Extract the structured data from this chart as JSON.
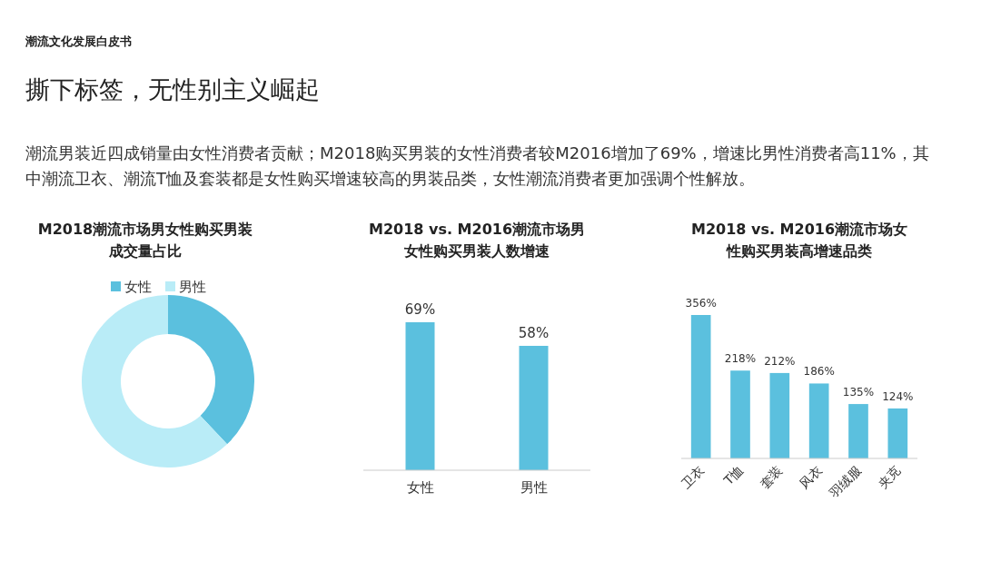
{
  "chart_data": [
    {
      "type": "donut",
      "title": "M2018潮流市场男女性购买男装成交量占比",
      "annotations": [
        "潮流文化发展白皮书",
        "撕下标签，无性别主义崛起",
        "潮流男装近四成销量由女性消费者贡献；M2018购买男装的女性消费者较M2016增加了69%，增速比男性消费者高11%，其中潮流卫衣、潮流T恤及套装都是女性购买增速较高的男装品类，女性潮流消费者更加强调个性解放。"
      ],
      "categories": [
        "女性",
        "男性"
      ],
      "values": [
        38,
        62
      ],
      "colors": [
        "#5bc0de",
        "#b9ecf7"
      ],
      "legend": "top"
    },
    {
      "type": "bar",
      "title": "M2018 vs. M2016潮流市场男女性购买男装人数增速",
      "categories": [
        "女性",
        "男性"
      ],
      "values": [
        69,
        58
      ],
      "value_labels": [
        "69%",
        "58%"
      ],
      "color": "#5bc0de"
    },
    {
      "type": "bar",
      "title": "M2018 vs. M2016潮流市场女性购买男装高增速品类",
      "categories": [
        "卫衣",
        "T恤",
        "套装",
        "风衣",
        "羽绒服",
        "夹克"
      ],
      "values": [
        356,
        218,
        212,
        186,
        135,
        124
      ],
      "value_labels": [
        "356%",
        "218%",
        "212%",
        "186%",
        "135%",
        "124%"
      ],
      "color": "#5bc0de"
    }
  ]
}
